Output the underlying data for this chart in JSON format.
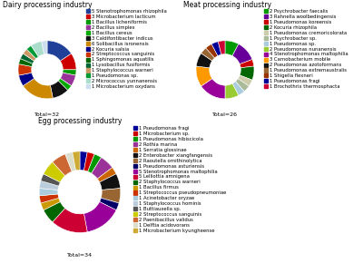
{
  "dairy": {
    "title": "Dairy processing industry",
    "total_label": "Total=32",
    "species": [
      {
        "name": "5 Stenotrophomonas rhizophila",
        "count": 5,
        "color": "#1f3f99"
      },
      {
        "name": "3 Microbacterium lacticum",
        "count": 3,
        "color": "#cc0000"
      },
      {
        "name": "1 Bacillus licheniformis",
        "count": 1,
        "color": "#009900"
      },
      {
        "name": "2 Bacillus simplex",
        "count": 2,
        "color": "#993399"
      },
      {
        "name": "1 Bacillus cereus",
        "count": 1,
        "color": "#00aa00"
      },
      {
        "name": "3 Caldifontibacter indicus",
        "count": 3,
        "color": "#111111"
      },
      {
        "name": "6 Solibacillus isronensis",
        "count": 6,
        "color": "#cc8800"
      },
      {
        "name": "2 Kocuria salsia",
        "count": 2,
        "color": "#000088"
      },
      {
        "name": "2 Streptococcus sanguinis",
        "count": 2,
        "color": "#cc3300"
      },
      {
        "name": "1 Sphingomonas aquatilis",
        "count": 1,
        "color": "#006600"
      },
      {
        "name": "1 Lysobacillus fusiformis",
        "count": 1,
        "color": "#006633"
      },
      {
        "name": "1 Staphylococcus warneri",
        "count": 1,
        "color": "#cc9966"
      },
      {
        "name": "1 Pseudomonas sp.",
        "count": 1,
        "color": "#009933"
      },
      {
        "name": "2 Micrococcus yunnanensis",
        "count": 2,
        "color": "#aaddcc"
      },
      {
        "name": "1 Microbacterium oxydans",
        "count": 1,
        "color": "#ccddee"
      }
    ]
  },
  "meat": {
    "title": "Meat processing industry",
    "total_label": "Total=26",
    "species": [
      {
        "name": "2 Psychrobacter faecalis",
        "count": 2,
        "color": "#009900"
      },
      {
        "name": "3 Rahnella woolbedingensis",
        "count": 3,
        "color": "#660099"
      },
      {
        "name": "1 Pseudomonas koreensis",
        "count": 1,
        "color": "#cc0000"
      },
      {
        "name": "2 Kocuria rhizophila",
        "count": 2,
        "color": "#006600"
      },
      {
        "name": "1 Pseudomonas cremoricolorata",
        "count": 1,
        "color": "#ccccaa"
      },
      {
        "name": "1 Psychrobacter sp.",
        "count": 1,
        "color": "#aabb99"
      },
      {
        "name": "1 Pseudomonas sp.",
        "count": 1,
        "color": "#aaccdd"
      },
      {
        "name": "2 Pseudomonas nunanensis",
        "count": 2,
        "color": "#99cc33"
      },
      {
        "name": "4 Stenotrophomonas maltophilia",
        "count": 4,
        "color": "#990099"
      },
      {
        "name": "3 Carnobacterium mobile",
        "count": 3,
        "color": "#ff9900"
      },
      {
        "name": "2 Pseudomonas azotoformans",
        "count": 2,
        "color": "#111111"
      },
      {
        "name": "1 Pseudomonas extremaustralis",
        "count": 1,
        "color": "#996633"
      },
      {
        "name": "1 Shigella flexneri",
        "count": 1,
        "color": "#993300"
      },
      {
        "name": "1 Pseudomonas fragi",
        "count": 1,
        "color": "#000099"
      },
      {
        "name": "1 Brochothrix thermosphacta",
        "count": 1,
        "color": "#cc0033"
      }
    ]
  },
  "egg": {
    "title": "Egg processing industry",
    "total_label": "Total=34",
    "species": [
      {
        "name": "1 Pseudomonas fragi",
        "count": 1,
        "color": "#000099"
      },
      {
        "name": "1 Microbacterium sp.",
        "count": 1,
        "color": "#cc0000"
      },
      {
        "name": "1 Pseudomonas hibiscicola",
        "count": 1,
        "color": "#009900"
      },
      {
        "name": "2 Rothia marina",
        "count": 2,
        "color": "#993399"
      },
      {
        "name": "1 Serratia glossinae",
        "count": 1,
        "color": "#cc6600"
      },
      {
        "name": "2 Enterobacter xiangfangensis",
        "count": 2,
        "color": "#111111"
      },
      {
        "name": "2 Raoutella ornithinolytica",
        "count": 2,
        "color": "#996633"
      },
      {
        "name": "1 Pseudomonas asturiensis",
        "count": 1,
        "color": "#000066"
      },
      {
        "name": "5 Stenotrophomonas maltophilia",
        "count": 5,
        "color": "#990099"
      },
      {
        "name": "5 Lelliottia amnigena",
        "count": 5,
        "color": "#cc0033"
      },
      {
        "name": "2 Staphylococcus warneri",
        "count": 2,
        "color": "#006600"
      },
      {
        "name": "1 Bacillus firmus",
        "count": 1,
        "color": "#cc9900"
      },
      {
        "name": "1 Streptococcus pseudopneumoniae",
        "count": 1,
        "color": "#cc3300"
      },
      {
        "name": "1 Acinetobacter oryzae",
        "count": 1,
        "color": "#aaccdd"
      },
      {
        "name": "1 Staphylococcus hominis",
        "count": 1,
        "color": "#bbccdd"
      },
      {
        "name": "1 Buttiauxella sp.",
        "count": 1,
        "color": "#555555"
      },
      {
        "name": "2 Streptococcus sanguinis",
        "count": 2,
        "color": "#cccc00"
      },
      {
        "name": "2 Paenibacillus validus",
        "count": 2,
        "color": "#cc6633"
      },
      {
        "name": "1 Delftia acidovorans",
        "count": 1,
        "color": "#ddddcc"
      },
      {
        "name": "1 Microbacterium kyungheense",
        "count": 1,
        "color": "#ccaa33"
      }
    ]
  },
  "figsize": [
    4.0,
    2.9
  ],
  "dpi": 100
}
